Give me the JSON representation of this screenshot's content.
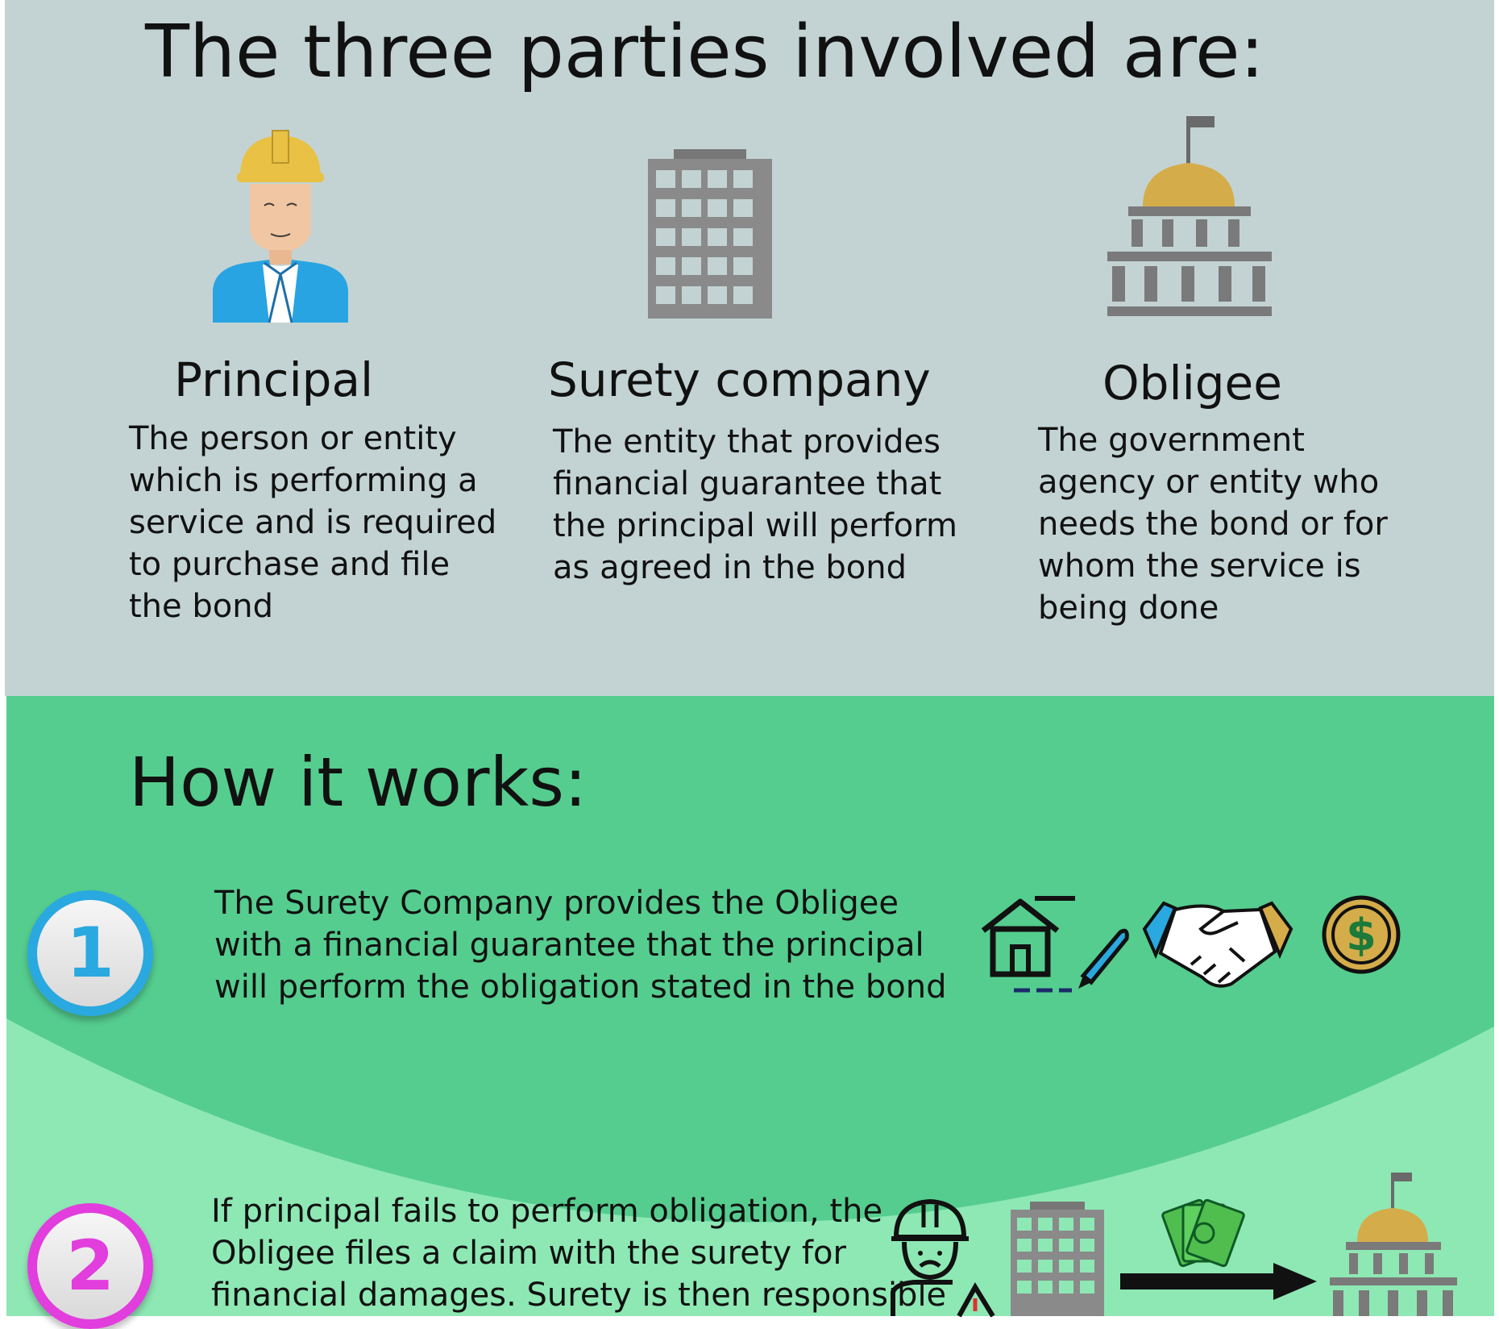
{
  "header": {
    "title": "The three parties involved are:"
  },
  "parties": [
    {
      "name": "Principal",
      "icon": "worker-icon",
      "description": "The person or entity\nwhich is performing a\nservice and is required\nto purchase and file\nthe bond"
    },
    {
      "name": "Surety company",
      "icon": "office-building-icon",
      "description": "The entity that provides\nfinancial guarantee that\nthe principal will perform\nas agreed in the bond"
    },
    {
      "name": "Obligee",
      "icon": "government-building-icon",
      "description": "The government\nagency or entity who\nneeds the bond or for\nwhom the service is\nbeing done"
    }
  ],
  "how": {
    "title": "How it works:",
    "steps": [
      {
        "number": "1",
        "text": "The Surety Company provides the Obligee\nwith a financial guarantee that the principal\nwill perform the obligation stated in the bond",
        "icons": [
          "house-contract-icon",
          "handshake-icon",
          "dollar-coin-icon"
        ]
      },
      {
        "number": "2",
        "text": "If principal fails to perform obligation, the\nObligee files a claim with the surety for\nfinancial damages. Surety is then responsible",
        "icons": [
          "sad-worker-icon",
          "office-building-icon",
          "money-icon",
          "arrow-right-icon",
          "government-building-icon"
        ]
      }
    ]
  },
  "colors": {
    "top_bg": "#c3d3d3",
    "how_bg_dark": "#55cd8f",
    "how_bg_light": "#8ee8b4",
    "gold": "#d4ac4a",
    "gray": "#8a8a8a",
    "blue_badge": "#2aa8e0",
    "magenta_badge": "#e23ddd"
  }
}
